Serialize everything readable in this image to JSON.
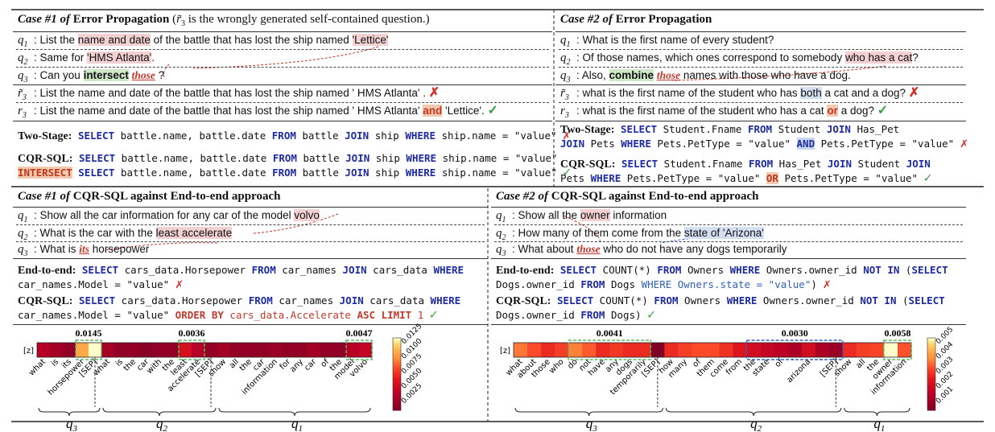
{
  "top_left": {
    "case": "Case #1 of",
    "title": "Error Propagation",
    "note_r": "r̃",
    "note_sub": "3",
    "note": "is the wrongly generated self-contained question.)",
    "note_open": "(",
    "q1_pre": "List the ",
    "q1_hl": "name and date",
    "q1_mid": " of the battle that has lost the ship named ",
    "q1_hl2": "'Lettice'",
    "q2_pre": "Same for ",
    "q2_hl": "'HMS Atlanta'",
    "q2_post": ".",
    "q3_pre": "Can you ",
    "q3_hl": "intersect",
    "q3_red": "those",
    "q3_post": " ?",
    "rt3": "List the name and date of the battle that has lost the ship named ' HMS Atlanta' .",
    "r3_pre": "List the name and date of the battle that has lost the ship named ' HMS Atlanta'",
    "r3_hl": "and",
    "r3_post": "'Lettice'.",
    "twostage_label": "Two-Stage",
    "twostage_sql": [
      [
        "kw",
        "SELECT"
      ],
      [
        "t",
        " battle.name, battle.date "
      ],
      [
        "kw",
        "FROM"
      ],
      [
        "t",
        " battle "
      ],
      [
        "kw",
        "JOIN"
      ],
      [
        "t",
        " ship "
      ],
      [
        "kw",
        "WHERE"
      ],
      [
        "t",
        " ship.name = \"value\""
      ]
    ],
    "cqr_label": "CQR-SQL",
    "cqr_sql1": [
      [
        "kw",
        "SELECT"
      ],
      [
        "t",
        " battle.name, battle.date "
      ],
      [
        "kw",
        "FROM"
      ],
      [
        "t",
        " battle "
      ],
      [
        "kw",
        "JOIN"
      ],
      [
        "t",
        " ship "
      ],
      [
        "kw",
        "WHERE"
      ],
      [
        "t",
        " ship.name = \"value\""
      ]
    ],
    "cqr_sql2": [
      [
        "hl",
        "INTERSECT"
      ],
      [
        "t",
        " "
      ],
      [
        "kw",
        "SELECT"
      ],
      [
        "t",
        " battle.name, battle.date "
      ],
      [
        "kw",
        "FROM"
      ],
      [
        "t",
        " battle "
      ],
      [
        "kw",
        "JOIN"
      ],
      [
        "t",
        " ship "
      ],
      [
        "kw",
        "WHERE"
      ],
      [
        "t",
        " ship.name = \"value\""
      ]
    ]
  },
  "top_right": {
    "case": "Case #2 of",
    "title": "Error Propagation",
    "q1": "What is the first name of every student?",
    "q2_pre": "Of those names, which ones correspond to somebody ",
    "q2_hl": "who has a cat",
    "q2_post": "?",
    "q3_pre": "Also, ",
    "q3_hl": "combine",
    "q3_red": "those",
    "q3_post": " names with those who have a dog.",
    "rt3_pre": "what is the first name of the student who has ",
    "rt3_hl": "both",
    "rt3_post": " a cat and a dog?",
    "r3_pre": "what is the first name of the student who has a cat ",
    "r3_hl": "or",
    "r3_post": " a dog?",
    "twostage_label": "Two-Stage",
    "ts1": [
      [
        "kw",
        "SELECT"
      ],
      [
        "t",
        " Student.Fname "
      ],
      [
        "kw",
        "FROM"
      ],
      [
        "t",
        " Student "
      ],
      [
        "kw",
        "JOIN"
      ],
      [
        "t",
        " Has_Pet"
      ]
    ],
    "ts2": [
      [
        "kw",
        "JOIN"
      ],
      [
        "t",
        " Pets "
      ],
      [
        "kw",
        "WHERE"
      ],
      [
        "t",
        " Pets.PetType = \"value\" "
      ],
      [
        "hlb",
        "AND"
      ],
      [
        "t",
        " Pets.PetType = \"value\""
      ]
    ],
    "cqr_label": "CQR-SQL",
    "c1": [
      [
        "kw",
        "SELECT"
      ],
      [
        "t",
        " Student.Fname "
      ],
      [
        "kw",
        "FROM"
      ],
      [
        "t",
        " Has_Pet "
      ],
      [
        "kw",
        "JOIN"
      ],
      [
        "t",
        " Student "
      ],
      [
        "kw",
        "JOIN"
      ]
    ],
    "c2": [
      [
        "t",
        "Pets "
      ],
      [
        "kw",
        "WHERE"
      ],
      [
        "t",
        " Pets.PetType = \"value\" "
      ],
      [
        "hlo",
        "OR"
      ],
      [
        "t",
        " Pets.PetType = \"value\""
      ]
    ]
  },
  "bottom_left": {
    "case": "Case #1 of",
    "title": "CQR-SQL against End-to-end approach",
    "q1_pre": "Show all the car information for any car of the model ",
    "q1_hl": "volvo",
    "q2_pre": "What is the car with the ",
    "q2_hl": "least accelerate",
    "q3_pre": "What is ",
    "q3_red": "its",
    "q3_post": " horsepower",
    "e2e_label": "End-to-end",
    "e1": [
      [
        "kw",
        "SELECT"
      ],
      [
        "t",
        " cars_data.Horsepower "
      ],
      [
        "kw",
        "FROM"
      ],
      [
        "t",
        " car_names "
      ],
      [
        "kw",
        "JOIN"
      ],
      [
        "t",
        " cars_data "
      ],
      [
        "kw",
        "WHERE"
      ]
    ],
    "e2": [
      [
        "t",
        "car_names.Model = \"value\""
      ]
    ],
    "cqr_label": "CQR-SQL",
    "c1": [
      [
        "kw",
        "SELECT"
      ],
      [
        "t",
        " cars_data.Horsepower "
      ],
      [
        "kw",
        "FROM"
      ],
      [
        "t",
        " car_names "
      ],
      [
        "kw",
        "JOIN"
      ],
      [
        "t",
        " cars_data "
      ],
      [
        "kw",
        "WHERE"
      ]
    ],
    "c2": [
      [
        "t",
        "car_names.Model = \"value\" "
      ],
      [
        "kr",
        "ORDER BY"
      ],
      [
        "r",
        " cars_data.Accelerate "
      ],
      [
        "kr",
        "ASC LIMIT"
      ],
      [
        "r",
        " 1"
      ]
    ],
    "z_label": "[z]",
    "vals": [
      "0.0145",
      "0.0036",
      "0.0047"
    ],
    "q_labels": [
      "q",
      "q",
      "q"
    ],
    "q_subs": [
      "3",
      "2",
      "1"
    ],
    "cbar_ticks": [
      "0.0125",
      "0.0100",
      "0.0075",
      "0.0050",
      "0.0025"
    ]
  },
  "bottom_right": {
    "case": "Case #2 of",
    "title": "CQR-SQL against End-to-end approach",
    "q1_pre": "Show all the ",
    "q1_hl": "owner",
    "q1_post": " information",
    "q2_pre": "How many of them come from the ",
    "q2_hl": "state of 'Arizona'",
    "q3_pre": "What about ",
    "q3_red": "those",
    "q3_post": " who do not have any dogs temporarily",
    "e2e_label": "End-to-end",
    "e1": [
      [
        "kw",
        "SELECT"
      ],
      [
        "t",
        " COUNT(*) "
      ],
      [
        "kw",
        "FROM"
      ],
      [
        "t",
        " Owners "
      ],
      [
        "kw",
        "WHERE"
      ],
      [
        "t",
        " Owners.owner_id "
      ],
      [
        "kw",
        "NOT IN"
      ],
      [
        "t",
        " ("
      ],
      [
        "kw",
        "SELECT"
      ]
    ],
    "e2": [
      [
        "t",
        "Dogs.owner_id "
      ],
      [
        "kw",
        "FROM"
      ],
      [
        "t",
        " Dogs "
      ],
      [
        "kb",
        "WHERE Owners.state = \"value\""
      ],
      [
        "t",
        ")"
      ]
    ],
    "cqr_label": "CQR-SQL",
    "c1": [
      [
        "kw",
        "SELECT"
      ],
      [
        "t",
        " COUNT(*) "
      ],
      [
        "kw",
        "FROM"
      ],
      [
        "t",
        " Owners "
      ],
      [
        "kw",
        "WHERE"
      ],
      [
        "t",
        " Owners.owner_id "
      ],
      [
        "kw",
        "NOT IN"
      ],
      [
        "t",
        " ("
      ],
      [
        "kw",
        "SELECT"
      ]
    ],
    "c2": [
      [
        "t",
        "Dogs.owner_id "
      ],
      [
        "kw",
        "FROM"
      ],
      [
        "t",
        " Dogs)"
      ]
    ],
    "z_label": "[z]",
    "vals": [
      "0.0041",
      "0.0030",
      "0.0058"
    ],
    "q_labels": [
      "q",
      "q",
      "q"
    ],
    "q_subs": [
      "3",
      "2",
      "1"
    ],
    "cbar_ticks": [
      "0.005",
      "0.004",
      "0.003",
      "0.002",
      "0.001"
    ]
  },
  "tokens_left": [
    "what",
    "is",
    "its",
    "horsepower",
    "[SEP]",
    "what",
    "is",
    "the",
    "car",
    "with",
    "the",
    "least",
    "accelerate",
    "[SEP]",
    "show",
    "all",
    "the",
    "car",
    "information",
    "for",
    "any",
    "car",
    "of",
    "the",
    "model",
    "volvo"
  ],
  "tokens_right": [
    "what",
    "about",
    "those",
    "who",
    "do",
    "not",
    "have",
    "any",
    "dogs",
    "temporarily",
    "[SEP]",
    "how",
    "many",
    "of",
    "them",
    "come",
    "from",
    "the",
    "state",
    "of",
    "'",
    "arizona",
    "'",
    "[SEP]",
    "show",
    "all",
    "the",
    "owner",
    "information"
  ],
  "heat_left": [
    0.004,
    0.003,
    0.002,
    0.012,
    0.0145,
    0.003,
    0.002,
    0.002,
    0.0015,
    0.002,
    0.002,
    0.006,
    0.004,
    0.002,
    0.003,
    0.002,
    0.002,
    0.002,
    0.0025,
    0.002,
    0.002,
    0.003,
    0.002,
    0.002,
    0.004,
    0.0047
  ],
  "heat_right": [
    0.004,
    0.0035,
    0.003,
    0.0033,
    0.0041,
    0.0037,
    0.003,
    0.0032,
    0.003,
    0.003,
    0.0002,
    0.003,
    0.0033,
    0.0035,
    0.0035,
    0.0031,
    0.0025,
    0.0022,
    0.0018,
    0.0016,
    0.0012,
    0.0022,
    0.0012,
    0.0008,
    0.003,
    0.0033,
    0.0034,
    0.0058,
    0.0036
  ],
  "colors": {
    "cross": "#d1312b",
    "check": "#3b9c3a",
    "keyword": "#1d2aa3",
    "highlight_red": "#c0392b"
  }
}
